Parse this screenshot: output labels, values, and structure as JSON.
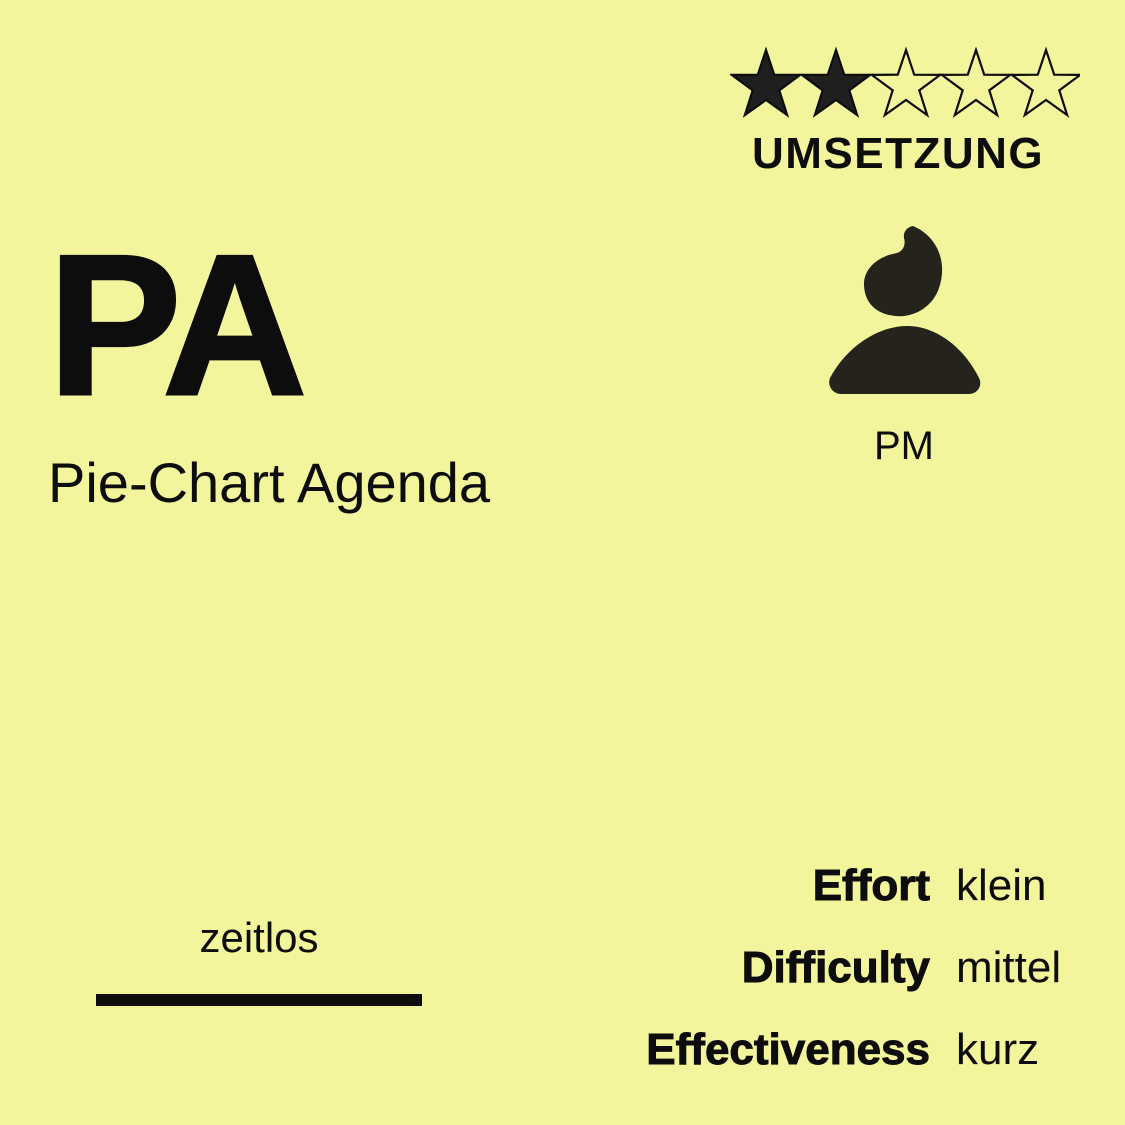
{
  "rating": {
    "value": 2,
    "max": 5,
    "label": "UMSETZUNG",
    "icon": "star-icon"
  },
  "card": {
    "code": "PA",
    "title": "Pie-Chart Agenda",
    "background": "#f3f59c",
    "ink": "#0d0d0d"
  },
  "role": {
    "icon": "person-icon",
    "label": "PM"
  },
  "timeframe": {
    "label": "zeitlos"
  },
  "metrics": [
    {
      "label": "Effort",
      "value": "klein"
    },
    {
      "label": "Difficulty",
      "value": "mittel"
    },
    {
      "label": "Effectiveness",
      "value": "kurz"
    }
  ]
}
